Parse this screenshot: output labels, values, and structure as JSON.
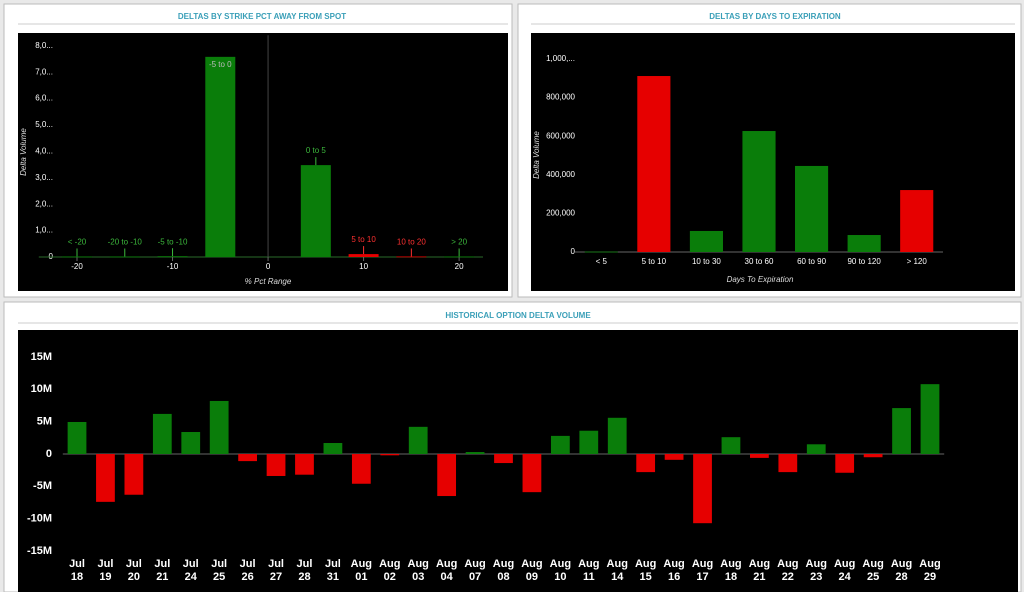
{
  "chart_data": [
    {
      "type": "bar",
      "title": "DELTAS BY STRIKE PCT AWAY FROM SPOT",
      "x_label": "% Pct Range",
      "y_label": "Delta Volume",
      "categories": [
        "< -20",
        "-20 to -10",
        "-5 to -10",
        "-5 to 0",
        "0 to 5",
        "5 to 10",
        "10 to 20",
        "> 20"
      ],
      "x": [
        -20,
        -15,
        -10,
        -5,
        5,
        10,
        15,
        20
      ],
      "values": [
        20000,
        20000,
        30000,
        7580000,
        3480000,
        110000,
        20000,
        20000
      ],
      "colors": [
        "#0a7d0a",
        "#0a7d0a",
        "#0a7d0a",
        "#0a7d0a",
        "#0a7d0a",
        "#e60000",
        "#e60000",
        "#0a7d0a"
      ],
      "label_colors": [
        "#3cb83c",
        "#3cb83c",
        "#3cb83c",
        "#3cb83c",
        "#3cb83c",
        "#ff3030",
        "#ff3030",
        "#3cb83c"
      ],
      "xlim": [
        -24,
        22.5
      ],
      "xticks": [
        -20,
        -10,
        0,
        10,
        20
      ],
      "ylim": [
        0,
        8400000
      ],
      "yticks": [
        0,
        {
          "value": 1000000,
          "label": "1,0..."
        },
        {
          "value": 2000000,
          "label": "2,0..."
        },
        {
          "value": 3000000,
          "label": "3,0..."
        },
        {
          "value": 4000000,
          "label": "4,0..."
        },
        {
          "value": 5000000,
          "label": "5,0..."
        },
        {
          "value": 6000000,
          "label": "6,0..."
        },
        {
          "value": 7000000,
          "label": "7,0..."
        },
        {
          "value": 8000000,
          "label": "8,0..."
        }
      ]
    },
    {
      "type": "bar",
      "title": "DELTAS BY DAYS TO EXPIRATION",
      "x_label": "Days To Expiration",
      "y_label": "Delta Volume",
      "categories": [
        "< 5",
        "5 to 10",
        "10 to 30",
        "30 to 60",
        "60 to 90",
        "90 to 120",
        "> 120"
      ],
      "values": [
        2000,
        912000,
        109000,
        627000,
        446000,
        88000,
        321000
      ],
      "colors": [
        "#0a7d0a",
        "#e60000",
        "#0a7d0a",
        "#0a7d0a",
        "#0a7d0a",
        "#0a7d0a",
        "#e60000"
      ],
      "ylim": [
        0,
        1050000
      ],
      "yticks": [
        0,
        {
          "value": 200000,
          "label": "200,000"
        },
        {
          "value": 400000,
          "label": "400,000"
        },
        {
          "value": 600000,
          "label": "600,000"
        },
        {
          "value": 800000,
          "label": "800,000"
        },
        {
          "value": 1000000,
          "label": "1,000,..."
        }
      ]
    },
    {
      "type": "bar",
      "title": "HISTORICAL OPTION DELTA VOLUME",
      "categories": [
        [
          "Jul",
          "18"
        ],
        [
          "Jul",
          "19"
        ],
        [
          "Jul",
          "20"
        ],
        [
          "Jul",
          "21"
        ],
        [
          "Jul",
          "24"
        ],
        [
          "Jul",
          "25"
        ],
        [
          "Jul",
          "26"
        ],
        [
          "Jul",
          "27"
        ],
        [
          "Jul",
          "28"
        ],
        [
          "Jul",
          "31"
        ],
        [
          "Aug",
          "01"
        ],
        [
          "Aug",
          "02"
        ],
        [
          "Aug",
          "03"
        ],
        [
          "Aug",
          "04"
        ],
        [
          "Aug",
          "07"
        ],
        [
          "Aug",
          "08"
        ],
        [
          "Aug",
          "09"
        ],
        [
          "Aug",
          "10"
        ],
        [
          "Aug",
          "11"
        ],
        [
          "Aug",
          "14"
        ],
        [
          "Aug",
          "15"
        ],
        [
          "Aug",
          "16"
        ],
        [
          "Aug",
          "17"
        ],
        [
          "Aug",
          "18"
        ],
        [
          "Aug",
          "21"
        ],
        [
          "Aug",
          "22"
        ],
        [
          "Aug",
          "23"
        ],
        [
          "Aug",
          "24"
        ],
        [
          "Aug",
          "25"
        ],
        [
          "Aug",
          "28"
        ],
        [
          "Aug",
          "29"
        ]
      ],
      "values": [
        4950000,
        -7400000,
        -6300000,
        6200000,
        3400000,
        8200000,
        -1100000,
        -3400000,
        -3200000,
        1700000,
        -4600000,
        -200000,
        4200000,
        -6500000,
        300000,
        -1400000,
        -5900000,
        2800000,
        3600000,
        5600000,
        -2800000,
        -900000,
        -10700000,
        2600000,
        -600000,
        -2800000,
        1500000,
        -2900000,
        -500000,
        7100000,
        10800000
      ],
      "positive_color": "#0a7d0a",
      "negative_color": "#e60000",
      "ylim": [
        -15000000,
        15000000
      ],
      "yticks": [
        {
          "value": -15000000,
          "label": "-15M"
        },
        {
          "value": -10000000,
          "label": "-10M"
        },
        {
          "value": -5000000,
          "label": "-5M"
        },
        0,
        {
          "value": 5000000,
          "label": "5M"
        },
        {
          "value": 10000000,
          "label": "10M"
        },
        {
          "value": 15000000,
          "label": "15M"
        }
      ]
    }
  ]
}
